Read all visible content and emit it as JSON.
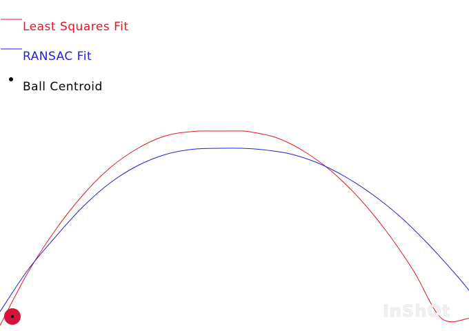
{
  "chart_data": {
    "type": "line",
    "title": "",
    "xlabel": "",
    "ylabel": "",
    "grid": false,
    "legend_position": "top-left",
    "series": [
      {
        "name": "Least Squares Fit",
        "color": "#e8141e",
        "style": "line",
        "x": [
          0,
          40,
          80,
          120,
          160,
          200,
          240,
          280,
          320,
          345,
          360,
          400,
          440,
          480,
          520,
          560,
          600,
          640,
          680
        ],
        "y": [
          472.0,
          396.0,
          334.0,
          283.0,
          243.0,
          215.0,
          197.0,
          190.6,
          190.0,
          190.0,
          190.8,
          199.4,
          219.0,
          247.9,
          286.6,
          335.0,
          393.4,
          461.6,
          461.6
        ]
      },
      {
        "name": "RANSAC Fit",
        "color": "#1e1ee0",
        "style": "line",
        "x": [
          0,
          40,
          80,
          120,
          160,
          200,
          240,
          280,
          320,
          350,
          380,
          420,
          460,
          500,
          540,
          580,
          620,
          660,
          680
        ],
        "y": [
          452.0,
          392.0,
          344.0,
          300.0,
          265.0,
          240.0,
          224.0,
          216.4,
          215.0,
          215.0,
          217.0,
          223.0,
          236.0,
          256.0,
          282.0,
          314.0,
          353.0,
          397.0,
          421.0
        ]
      },
      {
        "name": "Ball Centroid",
        "color": "#000000",
        "style": "point",
        "x": [
          18
        ],
        "y": [
          459
        ]
      }
    ],
    "ball": {
      "color": "#d4143a",
      "x": 18,
      "y": 459
    }
  },
  "legend": {
    "items": [
      {
        "label": "Least Squares Fit",
        "color": "#e8141e",
        "marker": "line"
      },
      {
        "label": "RANSAC Fit",
        "color": "#1e1ee0",
        "marker": "line"
      },
      {
        "label": "Ball Centroid",
        "color": "#000000",
        "marker": "dot"
      }
    ]
  },
  "watermark": {
    "text": "InShOt"
  }
}
